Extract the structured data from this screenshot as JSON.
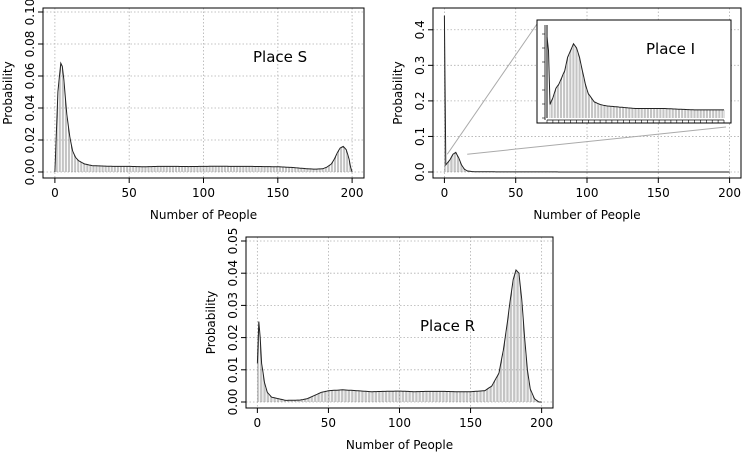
{
  "chart_data": [
    {
      "type": "area",
      "annotation": "Place S",
      "xlabel": "Number of People",
      "ylabel": "Probability",
      "xlim": [
        0,
        200
      ],
      "ylim": [
        0,
        0.1
      ],
      "xticks": [
        "0",
        "50",
        "100",
        "150",
        "200"
      ],
      "yticks": [
        "0.00",
        "0.02",
        "0.04",
        "0.06",
        "0.08",
        "0.10"
      ],
      "grid": true,
      "x": [
        0,
        2,
        4,
        5,
        6,
        8,
        10,
        12,
        14,
        16,
        18,
        20,
        25,
        30,
        40,
        50,
        60,
        70,
        80,
        90,
        100,
        110,
        120,
        130,
        140,
        150,
        160,
        170,
        175,
        180,
        183,
        186,
        188,
        190,
        192,
        194,
        196,
        198,
        199,
        200
      ],
      "values": [
        0.0,
        0.05,
        0.068,
        0.066,
        0.058,
        0.036,
        0.022,
        0.013,
        0.009,
        0.007,
        0.006,
        0.005,
        0.004,
        0.0038,
        0.0035,
        0.0035,
        0.0033,
        0.0035,
        0.0035,
        0.0034,
        0.0035,
        0.0036,
        0.0035,
        0.0035,
        0.0034,
        0.0033,
        0.0028,
        0.002,
        0.0018,
        0.002,
        0.003,
        0.005,
        0.008,
        0.012,
        0.015,
        0.016,
        0.014,
        0.008,
        0.003,
        0.0
      ]
    },
    {
      "type": "area",
      "annotation": "Place I",
      "xlabel": "Number of People",
      "ylabel": "Probability",
      "xlim": [
        0,
        200
      ],
      "ylim": [
        0,
        0.45
      ],
      "xticks": [
        "0",
        "50",
        "100",
        "150",
        "200"
      ],
      "yticks": [
        "0.0",
        "0.1",
        "0.2",
        "0.3",
        "0.4"
      ],
      "grid": true,
      "x": [
        0,
        1,
        2,
        4,
        6,
        8,
        10,
        12,
        14,
        16,
        20,
        30,
        50,
        100,
        150,
        200
      ],
      "values": [
        0.44,
        0.02,
        0.025,
        0.035,
        0.05,
        0.055,
        0.04,
        0.02,
        0.008,
        0.003,
        0.001,
        0.0005,
        0.0002,
        0.0001,
        0.0,
        0.0
      ],
      "inset": {
        "x": [
          0,
          0.5,
          1,
          2,
          3,
          4,
          5,
          6,
          7,
          8,
          9,
          10,
          11,
          12,
          13,
          14,
          16,
          18,
          20,
          25,
          30,
          40,
          50,
          60
        ],
        "values": [
          0.44,
          0.05,
          0.01,
          0.015,
          0.022,
          0.025,
          0.03,
          0.035,
          0.045,
          0.05,
          0.055,
          0.052,
          0.045,
          0.035,
          0.025,
          0.018,
          0.012,
          0.01,
          0.009,
          0.008,
          0.007,
          0.007,
          0.006,
          0.006
        ]
      }
    },
    {
      "type": "area",
      "annotation": "Place R",
      "xlabel": "Number of People",
      "ylabel": "Probability",
      "xlim": [
        0,
        200
      ],
      "ylim": [
        0,
        0.05
      ],
      "xticks": [
        "0",
        "50",
        "100",
        "150",
        "200"
      ],
      "yticks": [
        "0.00",
        "0.01",
        "0.02",
        "0.03",
        "0.04",
        "0.05"
      ],
      "grid": true,
      "x": [
        0,
        1,
        2,
        3,
        5,
        7,
        10,
        15,
        20,
        30,
        35,
        40,
        45,
        50,
        60,
        70,
        80,
        90,
        100,
        110,
        120,
        130,
        140,
        150,
        160,
        165,
        170,
        173,
        176,
        178,
        180,
        182,
        184,
        186,
        188,
        190,
        192,
        195,
        198
      ],
      "values": [
        0.012,
        0.025,
        0.02,
        0.012,
        0.006,
        0.003,
        0.0015,
        0.001,
        0.0005,
        0.0006,
        0.001,
        0.002,
        0.003,
        0.0035,
        0.0038,
        0.0035,
        0.0032,
        0.0033,
        0.0034,
        0.0032,
        0.0033,
        0.0033,
        0.0032,
        0.0032,
        0.0035,
        0.005,
        0.009,
        0.016,
        0.025,
        0.032,
        0.038,
        0.041,
        0.04,
        0.032,
        0.02,
        0.01,
        0.004,
        0.001,
        0.0
      ]
    }
  ]
}
